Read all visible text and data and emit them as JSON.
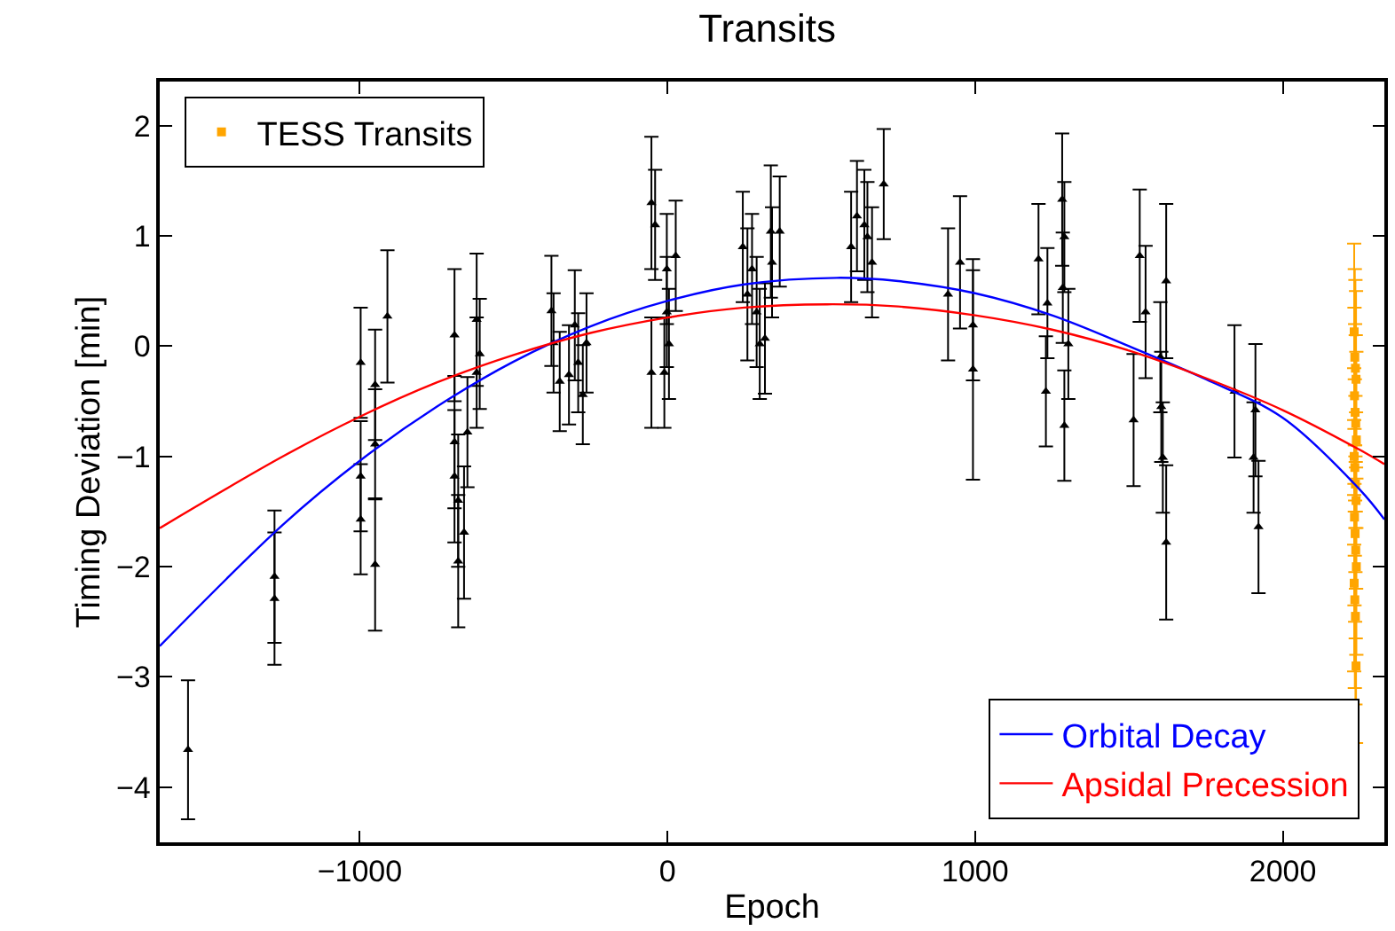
{
  "chart_data": {
    "type": "scatter",
    "title": "Transits",
    "xlabel": "Epoch",
    "ylabel": "Timing Deviation [min]",
    "xlim": [
      -1650,
      2330
    ],
    "ylim": [
      -4.5,
      2.4
    ],
    "xticks": [
      {
        "value": -1000,
        "label": "−1000"
      },
      0,
      1000,
      2000
    ],
    "yticks": [
      {
        "value": -4,
        "label": "−4"
      },
      {
        "value": -3,
        "label": "−3"
      },
      {
        "value": -2,
        "label": "−2"
      },
      {
        "value": -1,
        "label": "−1"
      },
      0,
      1,
      2
    ],
    "grid": false,
    "legend": "top left",
    "series": [
      {
        "color": "#000000",
        "marker": "triangle",
        "x": [
          -1558,
          -1277,
          -1277,
          -997,
          -997,
          -997,
          -950,
          -950,
          -950,
          -910,
          -692,
          -692,
          -692,
          -680,
          -680,
          -661,
          -650,
          -620,
          -620,
          -610,
          -377,
          -370,
          -350,
          -301,
          -290,
          -275,
          -263,
          -320,
          -52,
          -40,
          -2,
          -2,
          -52,
          -10,
          27,
          5,
          245,
          260,
          317,
          336,
          340,
          365,
          300,
          275,
          290,
          597,
          616,
          640,
          665,
          703,
          650,
          912,
          951,
          993,
          993,
          1206,
          1235,
          1230,
          1283,
          1290,
          1303,
          1290,
          1285,
          1535,
          1554,
          1515,
          1621,
          1602,
          1610,
          1621,
          1605,
          1843,
          1911,
          1905,
          1921
        ],
        "values": [
          -3.66,
          -2.09,
          -2.29,
          -0.15,
          -1.18,
          -1.57,
          -0.35,
          -0.89,
          -1.98,
          0.27,
          0.1,
          -0.87,
          -1.18,
          -1.4,
          -1.95,
          -1.69,
          -0.78,
          0.24,
          -0.24,
          -0.07,
          0.32,
          0.03,
          -0.32,
          0.19,
          -0.15,
          -0.44,
          0.03,
          -0.26,
          1.3,
          1.1,
          0.7,
          0.31,
          -0.24,
          -0.24,
          0.82,
          0.02,
          0.9,
          0.47,
          0.07,
          1.04,
          0.76,
          1.04,
          0.02,
          0.7,
          0.31,
          0.9,
          1.18,
          1.1,
          0.76,
          1.47,
          0.99,
          0.47,
          0.76,
          0.19,
          -0.21,
          0.79,
          0.39,
          -0.41,
          1.33,
          0.99,
          0.02,
          -0.72,
          0.53,
          0.82,
          0.31,
          -0.67,
          0.59,
          -0.1,
          -1.01,
          -1.78,
          -0.55,
          -0.41,
          -0.58,
          -1.01,
          -1.64
        ],
        "errors": [
          0.63,
          0.6,
          0.6,
          0.5,
          0.5,
          0.5,
          0.5,
          0.5,
          0.6,
          0.6,
          0.6,
          0.6,
          0.6,
          0.6,
          0.6,
          0.6,
          0.5,
          0.6,
          0.5,
          0.5,
          0.5,
          0.45,
          0.45,
          0.5,
          0.45,
          0.45,
          0.45,
          0.45,
          0.6,
          0.5,
          0.5,
          0.5,
          0.5,
          0.5,
          0.5,
          0.5,
          0.5,
          0.6,
          0.5,
          0.6,
          0.5,
          0.5,
          0.5,
          0.5,
          0.5,
          0.5,
          0.5,
          0.5,
          0.5,
          0.5,
          0.5,
          0.6,
          0.6,
          0.5,
          1.0,
          0.5,
          0.5,
          0.5,
          0.6,
          0.5,
          0.5,
          0.5,
          0.5,
          0.6,
          0.6,
          0.6,
          0.7,
          0.5,
          0.5,
          0.7,
          0.5,
          0.6,
          0.6,
          0.5,
          0.6
        ]
      },
      {
        "name": "TESS Transits",
        "color": "#ffa500",
        "marker": "square",
        "x": [
          2232,
          2234,
          2236,
          2238,
          2233,
          2235,
          2237,
          2239,
          2232,
          2234,
          2236,
          2238,
          2233,
          2235,
          2237,
          2239,
          2232,
          2234,
          2236,
          2238
        ],
        "values": [
          0.13,
          -0.1,
          -0.2,
          -0.3,
          -0.45,
          -0.6,
          -0.7,
          -0.85,
          -1.0,
          -1.1,
          -1.25,
          -1.4,
          -1.55,
          -1.7,
          -1.85,
          -2.0,
          -2.15,
          -2.3,
          -2.45,
          -2.9
        ],
        "errors": [
          0.8,
          0.8,
          0.8,
          0.8,
          0.8,
          0.8,
          0.8,
          0.8,
          0.8,
          0.8,
          0.8,
          0.8,
          0.8,
          0.8,
          0.8,
          0.8,
          0.8,
          0.8,
          0.8,
          0.7
        ]
      },
      {
        "type": "line",
        "name": "Orbital Decay",
        "color": "#0000ff",
        "marker": "none",
        "x": [
          -1650,
          -1250,
          -1000,
          -750,
          -500,
          -250,
          0,
          250,
          550,
          750,
          1000,
          1250,
          1500,
          1750,
          2000,
          2250,
          2330
        ],
        "values": [
          -2.72,
          -1.62,
          -1.04,
          -0.55,
          -0.14,
          0.18,
          0.41,
          0.56,
          0.62,
          0.59,
          0.48,
          0.28,
          0.0,
          -0.3,
          -0.65,
          -1.3,
          -1.57
        ]
      },
      {
        "type": "line",
        "name": "Apsidal Precession",
        "color": "#ff0000",
        "marker": "none",
        "x": [
          -1650,
          -1250,
          -1000,
          -750,
          -500,
          -250,
          0,
          250,
          520,
          750,
          1000,
          1250,
          1500,
          1750,
          2000,
          2250,
          2330
        ],
        "values": [
          -1.65,
          -1.0,
          -0.64,
          -0.33,
          -0.08,
          0.12,
          0.26,
          0.35,
          0.38,
          0.36,
          0.28,
          0.15,
          -0.04,
          -0.29,
          -0.58,
          -0.94,
          -1.07
        ]
      }
    ]
  }
}
